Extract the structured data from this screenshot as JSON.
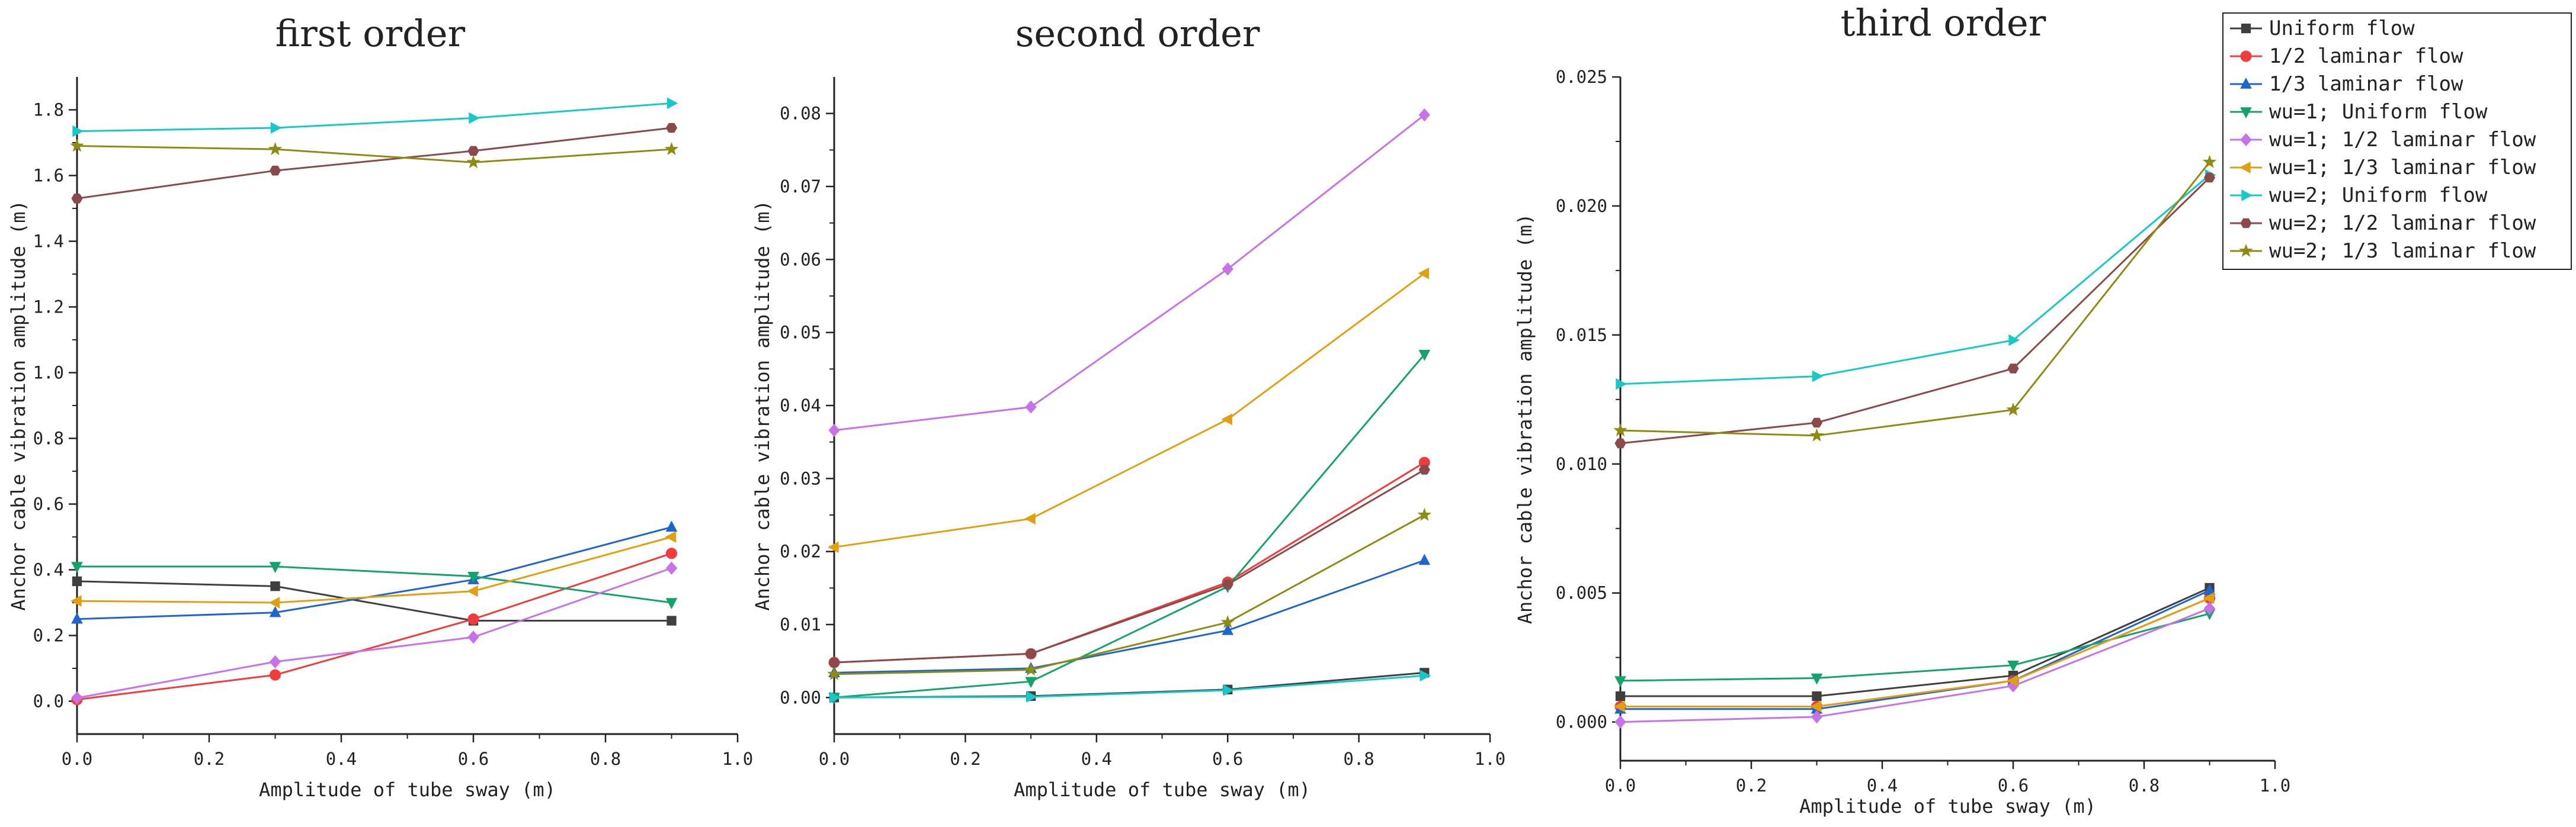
{
  "chart_data": [
    {
      "type": "line",
      "title": "first order",
      "xlabel": "Amplitude of tube sway (m)",
      "ylabel": "Anchor cable vibration amplitude (m)",
      "xlim": [
        0,
        1.0
      ],
      "ylim": [
        -0.1,
        1.9
      ],
      "xticks": [
        0.0,
        0.2,
        0.4,
        0.6,
        0.8,
        1.0
      ],
      "xtick_labels": [
        "0.0",
        "0.2",
        "0.4",
        "0.6",
        "0.8",
        "1.0"
      ],
      "yticks": [
        0.0,
        0.2,
        0.4,
        0.6,
        0.8,
        1.0,
        1.2,
        1.4,
        1.6,
        1.8
      ],
      "ytick_labels": [
        "0.0",
        "0.2",
        "0.4",
        "0.6",
        "0.8",
        "1.0",
        "1.2",
        "1.4",
        "1.6",
        "1.8"
      ],
      "x": [
        0.0,
        0.3,
        0.6,
        0.9
      ],
      "series": [
        {
          "name": "Uniform flow",
          "values": [
            0.365,
            0.35,
            0.245,
            0.245
          ]
        },
        {
          "name": "1/2 laminar flow",
          "values": [
            0.005,
            0.08,
            0.25,
            0.45
          ]
        },
        {
          "name": "1/3 laminar flow",
          "values": [
            0.25,
            0.27,
            0.37,
            0.53
          ]
        },
        {
          "name": "wu=1; Uniform flow",
          "values": [
            0.41,
            0.41,
            0.38,
            0.3
          ]
        },
        {
          "name": "wu=1; 1/2 laminar flow",
          "values": [
            0.01,
            0.12,
            0.195,
            0.405
          ]
        },
        {
          "name": "wu=1; 1/3 laminar flow",
          "values": [
            0.305,
            0.3,
            0.335,
            0.5
          ]
        },
        {
          "name": "wu=2; Uniform flow",
          "values": [
            1.735,
            1.745,
            1.775,
            1.82
          ]
        },
        {
          "name": "wu=2; 1/2 laminar flow",
          "values": [
            1.53,
            1.615,
            1.675,
            1.745
          ]
        },
        {
          "name": "wu=2; 1/3 laminar flow",
          "values": [
            1.69,
            1.68,
            1.64,
            1.68
          ]
        }
      ]
    },
    {
      "type": "line",
      "title": "second order",
      "xlabel": "Amplitude of tube sway (m)",
      "ylabel": "Anchor cable vibration amplitude (m)",
      "xlim": [
        0,
        1.0
      ],
      "ylim": [
        -0.005,
        0.085
      ],
      "xticks": [
        0.0,
        0.2,
        0.4,
        0.6,
        0.8,
        1.0
      ],
      "xtick_labels": [
        "0.0",
        "0.2",
        "0.4",
        "0.6",
        "0.8",
        "1.0"
      ],
      "yticks": [
        0.0,
        0.01,
        0.02,
        0.03,
        0.04,
        0.05,
        0.06,
        0.07,
        0.08
      ],
      "ytick_labels": [
        "0.00",
        "0.01",
        "0.02",
        "0.03",
        "0.04",
        "0.05",
        "0.06",
        "0.07",
        "0.08"
      ],
      "x": [
        0.0,
        0.3,
        0.6,
        0.9
      ],
      "series": [
        {
          "name": "Uniform flow",
          "values": [
            0.0,
            0.0002,
            0.0011,
            0.0034
          ]
        },
        {
          "name": "1/2 laminar flow",
          "values": [
            0.0048,
            0.006,
            0.0158,
            0.0322
          ]
        },
        {
          "name": "1/3 laminar flow",
          "values": [
            0.0034,
            0.004,
            0.0092,
            0.0188
          ]
        },
        {
          "name": "wu=1; Uniform flow",
          "values": [
            0.0,
            0.0022,
            0.0152,
            0.047
          ]
        },
        {
          "name": "wu=1; 1/2 laminar flow",
          "values": [
            0.0366,
            0.0398,
            0.0587,
            0.0798
          ]
        },
        {
          "name": "wu=1; 1/3 laminar flow",
          "values": [
            0.0206,
            0.0245,
            0.0381,
            0.0581
          ]
        },
        {
          "name": "wu=2; Uniform flow",
          "values": [
            0.0,
            0.0001,
            0.001,
            0.003
          ]
        },
        {
          "name": "wu=2; 1/2 laminar flow",
          "values": [
            0.0048,
            0.006,
            0.0155,
            0.0312
          ]
        },
        {
          "name": "wu=2; 1/3 laminar flow",
          "values": [
            0.0032,
            0.0038,
            0.0103,
            0.025
          ]
        }
      ]
    },
    {
      "type": "line",
      "title": "third order",
      "xlabel": "Amplitude of tube sway (m)",
      "ylabel": "Anchor cable vibration amplitude (m)",
      "xlim": [
        0,
        1.0
      ],
      "ylim": [
        -0.0015,
        0.025
      ],
      "xticks": [
        0.0,
        0.2,
        0.4,
        0.6,
        0.8,
        1.0
      ],
      "xtick_labels": [
        "0.0",
        "0.2",
        "0.4",
        "0.6",
        "0.8",
        "1.0"
      ],
      "yticks": [
        0.0,
        0.005,
        0.01,
        0.015,
        0.02,
        0.025
      ],
      "ytick_labels": [
        "0.000",
        "0.005",
        "0.010",
        "0.015",
        "0.020",
        "0.025"
      ],
      "x": [
        0.0,
        0.3,
        0.6,
        0.9
      ],
      "series": [
        {
          "name": "Uniform flow",
          "values": [
            0.001,
            0.001,
            0.0018,
            0.0052
          ]
        },
        {
          "name": "1/2 laminar flow",
          "values": [
            0.0006,
            0.0006,
            0.0016,
            0.0048
          ]
        },
        {
          "name": "1/3 laminar flow",
          "values": [
            0.0005,
            0.0005,
            0.0016,
            0.0051
          ]
        },
        {
          "name": "wu=1; Uniform flow",
          "values": [
            0.0016,
            0.0017,
            0.0022,
            0.0042
          ]
        },
        {
          "name": "wu=1; 1/2 laminar flow",
          "values": [
            0.0,
            0.0002,
            0.0014,
            0.0044
          ]
        },
        {
          "name": "wu=1; 1/3 laminar flow",
          "values": [
            0.0006,
            0.0006,
            0.0016,
            0.0048
          ]
        },
        {
          "name": "wu=2; Uniform flow",
          "values": [
            0.0131,
            0.0134,
            0.0148,
            0.0212
          ]
        },
        {
          "name": "wu=2; 1/2 laminar flow",
          "values": [
            0.0108,
            0.0116,
            0.0137,
            0.0211
          ]
        },
        {
          "name": "wu=2; 1/3 laminar flow",
          "values": [
            0.0113,
            0.0111,
            0.0121,
            0.0217
          ]
        }
      ]
    }
  ],
  "legend": {
    "placement": "top-right",
    "entries": [
      {
        "label": "Uniform flow",
        "color": "#3f3f3f",
        "marker": "square"
      },
      {
        "label": "1/2 laminar flow",
        "color": "#f03c3c",
        "marker": "circle"
      },
      {
        "label": "1/3 laminar flow",
        "color": "#1f66cc",
        "marker": "triangle-up"
      },
      {
        "label": "wu=1; Uniform flow",
        "color": "#14a36a",
        "marker": "triangle-down"
      },
      {
        "label": "wu=1; 1/2 laminar flow",
        "color": "#c872e8",
        "marker": "diamond"
      },
      {
        "label": "wu=1; 1/3 laminar flow",
        "color": "#e0a010",
        "marker": "triangle-left"
      },
      {
        "label": "wu=2; Uniform flow",
        "color": "#18c8c8",
        "marker": "triangle-right"
      },
      {
        "label": "wu=2; 1/2 laminar flow",
        "color": "#8b4a4a",
        "marker": "hexagon"
      },
      {
        "label": "wu=2; 1/3 laminar flow",
        "color": "#8c8c14",
        "marker": "star"
      }
    ]
  }
}
